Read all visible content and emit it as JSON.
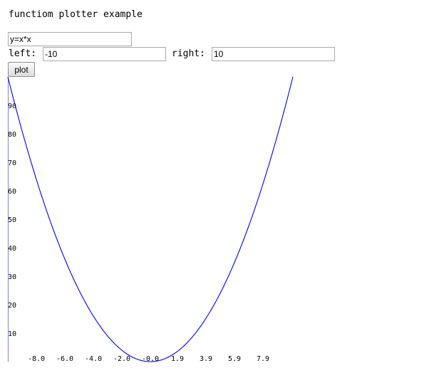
{
  "page": {
    "title": "functiom plotter example"
  },
  "form": {
    "formula_value": "y=x*x",
    "left_label": "left:",
    "left_value": "-10",
    "right_label": "right:",
    "right_value": "10",
    "plot_label": "plot"
  },
  "chart_data": {
    "type": "line",
    "function": "y=x*x",
    "xlim": [
      -10,
      10
    ],
    "ylim": [
      0,
      100
    ],
    "x_ticks": [
      "-8.0",
      "-6.0",
      "-4.0",
      "-2.0",
      "-0.0",
      "1.9",
      "3.9",
      "5.9",
      "7.9"
    ],
    "x_tick_values": [
      -8.0,
      -6.0,
      -4.0,
      -2.0,
      -0.0,
      1.9,
      3.9,
      5.9,
      7.9
    ],
    "y_ticks": [
      90,
      80,
      70,
      60,
      50,
      40,
      30,
      20,
      10
    ],
    "series_color": "#0000ff",
    "axis_color": "#8080ff",
    "grid": false
  }
}
